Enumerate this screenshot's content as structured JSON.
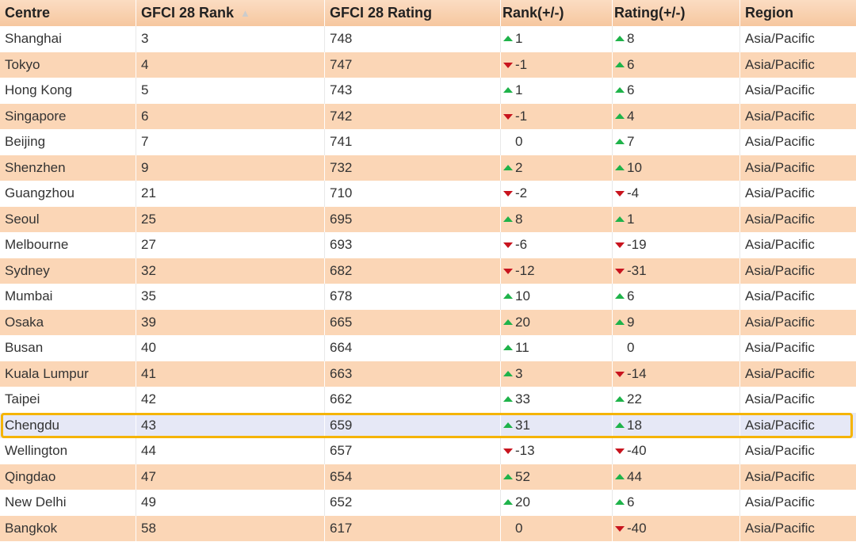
{
  "header": {
    "centre": "Centre",
    "rank": "GFCI 28 Rank",
    "rating": "GFCI 28 Rating",
    "rank_change": "Rank(+/-)",
    "rating_change": "Rating(+/-)",
    "region": "Region",
    "sort_icon": "sort-ascending-icon"
  },
  "colors": {
    "header_bg": "#f6c79f",
    "stripe": "#fbd6b6",
    "highlight_bg": "#e6e8f6",
    "highlight_border": "#f5b400",
    "up_arrow": "#1fb34a",
    "down_arrow": "#c8141e"
  },
  "highlighted_row": "Chengdu",
  "rows": [
    {
      "centre": "Shanghai",
      "rank": "3",
      "rating": "748",
      "rank_dir": "up",
      "rank_change": "1",
      "rating_dir": "up",
      "rating_change": "8",
      "region": "Asia/Pacific"
    },
    {
      "centre": "Tokyo",
      "rank": "4",
      "rating": "747",
      "rank_dir": "down",
      "rank_change": "-1",
      "rating_dir": "up",
      "rating_change": "6",
      "region": "Asia/Pacific"
    },
    {
      "centre": "Hong Kong",
      "rank": "5",
      "rating": "743",
      "rank_dir": "up",
      "rank_change": "1",
      "rating_dir": "up",
      "rating_change": "6",
      "region": "Asia/Pacific"
    },
    {
      "centre": "Singapore",
      "rank": "6",
      "rating": "742",
      "rank_dir": "down",
      "rank_change": "-1",
      "rating_dir": "up",
      "rating_change": "4",
      "region": "Asia/Pacific"
    },
    {
      "centre": "Beijing",
      "rank": "7",
      "rating": "741",
      "rank_dir": "none",
      "rank_change": "0",
      "rating_dir": "up",
      "rating_change": "7",
      "region": "Asia/Pacific"
    },
    {
      "centre": "Shenzhen",
      "rank": "9",
      "rating": "732",
      "rank_dir": "up",
      "rank_change": "2",
      "rating_dir": "up",
      "rating_change": "10",
      "region": "Asia/Pacific"
    },
    {
      "centre": "Guangzhou",
      "rank": "21",
      "rating": "710",
      "rank_dir": "down",
      "rank_change": "-2",
      "rating_dir": "down",
      "rating_change": "-4",
      "region": "Asia/Pacific"
    },
    {
      "centre": "Seoul",
      "rank": "25",
      "rating": "695",
      "rank_dir": "up",
      "rank_change": "8",
      "rating_dir": "up",
      "rating_change": "1",
      "region": "Asia/Pacific"
    },
    {
      "centre": "Melbourne",
      "rank": "27",
      "rating": "693",
      "rank_dir": "down",
      "rank_change": "-6",
      "rating_dir": "down",
      "rating_change": "-19",
      "region": "Asia/Pacific"
    },
    {
      "centre": "Sydney",
      "rank": "32",
      "rating": "682",
      "rank_dir": "down",
      "rank_change": "-12",
      "rating_dir": "down",
      "rating_change": "-31",
      "region": "Asia/Pacific"
    },
    {
      "centre": "Mumbai",
      "rank": "35",
      "rating": "678",
      "rank_dir": "up",
      "rank_change": "10",
      "rating_dir": "up",
      "rating_change": "6",
      "region": "Asia/Pacific"
    },
    {
      "centre": "Osaka",
      "rank": "39",
      "rating": "665",
      "rank_dir": "up",
      "rank_change": "20",
      "rating_dir": "up",
      "rating_change": "9",
      "region": "Asia/Pacific"
    },
    {
      "centre": "Busan",
      "rank": "40",
      "rating": "664",
      "rank_dir": "up",
      "rank_change": "11",
      "rating_dir": "none",
      "rating_change": "0",
      "region": "Asia/Pacific"
    },
    {
      "centre": "Kuala Lumpur",
      "rank": "41",
      "rating": "663",
      "rank_dir": "up",
      "rank_change": "3",
      "rating_dir": "down",
      "rating_change": "-14",
      "region": "Asia/Pacific"
    },
    {
      "centre": "Taipei",
      "rank": "42",
      "rating": "662",
      "rank_dir": "up",
      "rank_change": "33",
      "rating_dir": "up",
      "rating_change": "22",
      "region": "Asia/Pacific"
    },
    {
      "centre": "Chengdu",
      "rank": "43",
      "rating": "659",
      "rank_dir": "up",
      "rank_change": "31",
      "rating_dir": "up",
      "rating_change": "18",
      "region": "Asia/Pacific"
    },
    {
      "centre": "Wellington",
      "rank": "44",
      "rating": "657",
      "rank_dir": "down",
      "rank_change": "-13",
      "rating_dir": "down",
      "rating_change": "-40",
      "region": "Asia/Pacific"
    },
    {
      "centre": "Qingdao",
      "rank": "47",
      "rating": "654",
      "rank_dir": "up",
      "rank_change": "52",
      "rating_dir": "up",
      "rating_change": "44",
      "region": "Asia/Pacific"
    },
    {
      "centre": "New Delhi",
      "rank": "49",
      "rating": "652",
      "rank_dir": "up",
      "rank_change": "20",
      "rating_dir": "up",
      "rating_change": "6",
      "region": "Asia/Pacific"
    },
    {
      "centre": "Bangkok",
      "rank": "58",
      "rating": "617",
      "rank_dir": "none",
      "rank_change": "0",
      "rating_dir": "down",
      "rating_change": "-40",
      "region": "Asia/Pacific"
    }
  ]
}
